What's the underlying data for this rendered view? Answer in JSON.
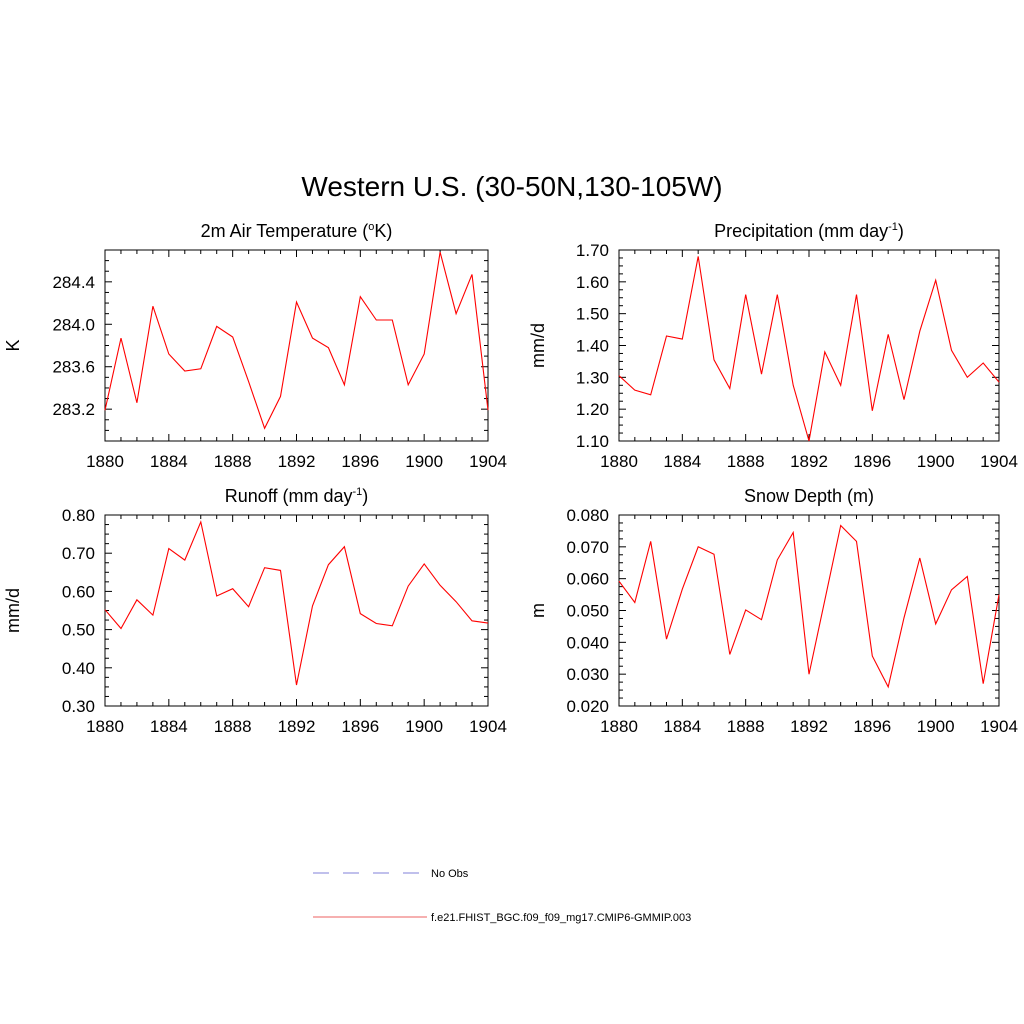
{
  "figure": {
    "title": "Western U.S. (30-50N,130-105W)"
  },
  "chart_data": [
    {
      "type": "line",
      "title": "2m Air Temperature (°K)",
      "title_parts": {
        "base": "2m Air Temperature (",
        "sup": "o",
        "tail": "K)"
      },
      "ylabel": "K",
      "xlim": [
        1880,
        1904
      ],
      "ylim": [
        282.9,
        284.7
      ],
      "x_ticks": [
        1880,
        1884,
        1888,
        1892,
        1896,
        1900,
        1904
      ],
      "y_ticks": [
        283.2,
        283.6,
        284.0,
        284.4
      ],
      "y_tick_labels": [
        "283.2",
        "283.6",
        "284.0",
        "284.4"
      ],
      "y_minor": 0.1,
      "x": [
        1880,
        1881,
        1882,
        1883,
        1884,
        1885,
        1886,
        1887,
        1888,
        1889,
        1890,
        1891,
        1892,
        1893,
        1894,
        1895,
        1896,
        1897,
        1898,
        1899,
        1900,
        1901,
        1902,
        1903,
        1904
      ],
      "series": [
        {
          "values": [
            283.19,
            283.87,
            283.26,
            284.17,
            283.72,
            283.56,
            283.58,
            283.98,
            283.88,
            283.46,
            283.02,
            283.32,
            284.21,
            283.87,
            283.78,
            283.43,
            284.26,
            284.04,
            284.04,
            283.43,
            283.72,
            284.68,
            284.1,
            284.47,
            283.19
          ]
        }
      ]
    },
    {
      "type": "line",
      "title": "Precipitation (mm day-1)",
      "title_parts": {
        "base": "Precipitation (mm day",
        "sup": "-1",
        "tail": ")"
      },
      "ylabel": "mm/d",
      "xlim": [
        1880,
        1904
      ],
      "ylim": [
        1.1,
        1.7
      ],
      "x_ticks": [
        1880,
        1884,
        1888,
        1892,
        1896,
        1900,
        1904
      ],
      "y_ticks": [
        1.1,
        1.2,
        1.3,
        1.4,
        1.5,
        1.6,
        1.7
      ],
      "y_tick_labels": [
        "1.10",
        "1.20",
        "1.30",
        "1.40",
        "1.50",
        "1.60",
        "1.70"
      ],
      "y_minor": 0.025,
      "x": [
        1880,
        1881,
        1882,
        1883,
        1884,
        1885,
        1886,
        1887,
        1888,
        1889,
        1890,
        1891,
        1892,
        1893,
        1894,
        1895,
        1896,
        1897,
        1898,
        1899,
        1900,
        1901,
        1902,
        1903,
        1904
      ],
      "series": [
        {
          "values": [
            1.305,
            1.26,
            1.245,
            1.43,
            1.42,
            1.68,
            1.355,
            1.265,
            1.56,
            1.31,
            1.56,
            1.275,
            1.1,
            1.38,
            1.275,
            1.56,
            1.195,
            1.435,
            1.23,
            1.445,
            1.605,
            1.385,
            1.3,
            1.345,
            1.285
          ]
        }
      ]
    },
    {
      "type": "line",
      "title": "Runoff (mm day-1)",
      "title_parts": {
        "base": "Runoff (mm day",
        "sup": "-1",
        "tail": ")"
      },
      "ylabel": "mm/d",
      "xlim": [
        1880,
        1904
      ],
      "ylim": [
        0.3,
        0.8
      ],
      "x_ticks": [
        1880,
        1884,
        1888,
        1892,
        1896,
        1900,
        1904
      ],
      "y_ticks": [
        0.3,
        0.4,
        0.5,
        0.6,
        0.7,
        0.8
      ],
      "y_tick_labels": [
        "0.30",
        "0.40",
        "0.50",
        "0.60",
        "0.70",
        "0.80"
      ],
      "y_minor": 0.025,
      "x": [
        1880,
        1881,
        1882,
        1883,
        1884,
        1885,
        1886,
        1887,
        1888,
        1889,
        1890,
        1891,
        1892,
        1893,
        1894,
        1895,
        1896,
        1897,
        1898,
        1899,
        1900,
        1901,
        1902,
        1903,
        1904
      ],
      "series": [
        {
          "values": [
            0.552,
            0.503,
            0.578,
            0.538,
            0.712,
            0.682,
            0.782,
            0.588,
            0.607,
            0.56,
            0.662,
            0.655,
            0.355,
            0.562,
            0.67,
            0.717,
            0.542,
            0.516,
            0.51,
            0.614,
            0.672,
            0.616,
            0.573,
            0.523,
            0.517
          ]
        }
      ]
    },
    {
      "type": "line",
      "title": "Snow Depth (m)",
      "ylabel": "m",
      "xlim": [
        1880,
        1904
      ],
      "ylim": [
        0.02,
        0.08
      ],
      "x_ticks": [
        1880,
        1884,
        1888,
        1892,
        1896,
        1900,
        1904
      ],
      "y_ticks": [
        0.02,
        0.03,
        0.04,
        0.05,
        0.06,
        0.07,
        0.08
      ],
      "y_tick_labels": [
        "0.020",
        "0.030",
        "0.040",
        "0.050",
        "0.060",
        "0.070",
        "0.080"
      ],
      "y_minor": 0.0025,
      "x": [
        1880,
        1881,
        1882,
        1883,
        1884,
        1885,
        1886,
        1887,
        1888,
        1889,
        1890,
        1891,
        1892,
        1893,
        1894,
        1895,
        1896,
        1897,
        1898,
        1899,
        1900,
        1901,
        1902,
        1903,
        1904
      ],
      "series": [
        {
          "values": [
            0.0592,
            0.0525,
            0.0717,
            0.041,
            0.0567,
            0.07,
            0.0677,
            0.0362,
            0.0502,
            0.0471,
            0.0659,
            0.0745,
            0.03,
            0.0532,
            0.0767,
            0.0717,
            0.0357,
            0.026,
            0.0477,
            0.0665,
            0.0458,
            0.0565,
            0.0607,
            0.027,
            0.055
          ]
        }
      ]
    }
  ],
  "legend": {
    "entries": [
      {
        "label": "No Obs",
        "style": "dashed",
        "color": "#9a9ae0"
      },
      {
        "label": "f.e21.FHIST_BGC.f09_f09_mg17.CMIP6-GMMIP.003",
        "style": "solid",
        "color": "#f08080"
      }
    ]
  },
  "colors": {
    "series_line": "#ff0000",
    "axis": "#000000",
    "background": "#ffffff"
  }
}
